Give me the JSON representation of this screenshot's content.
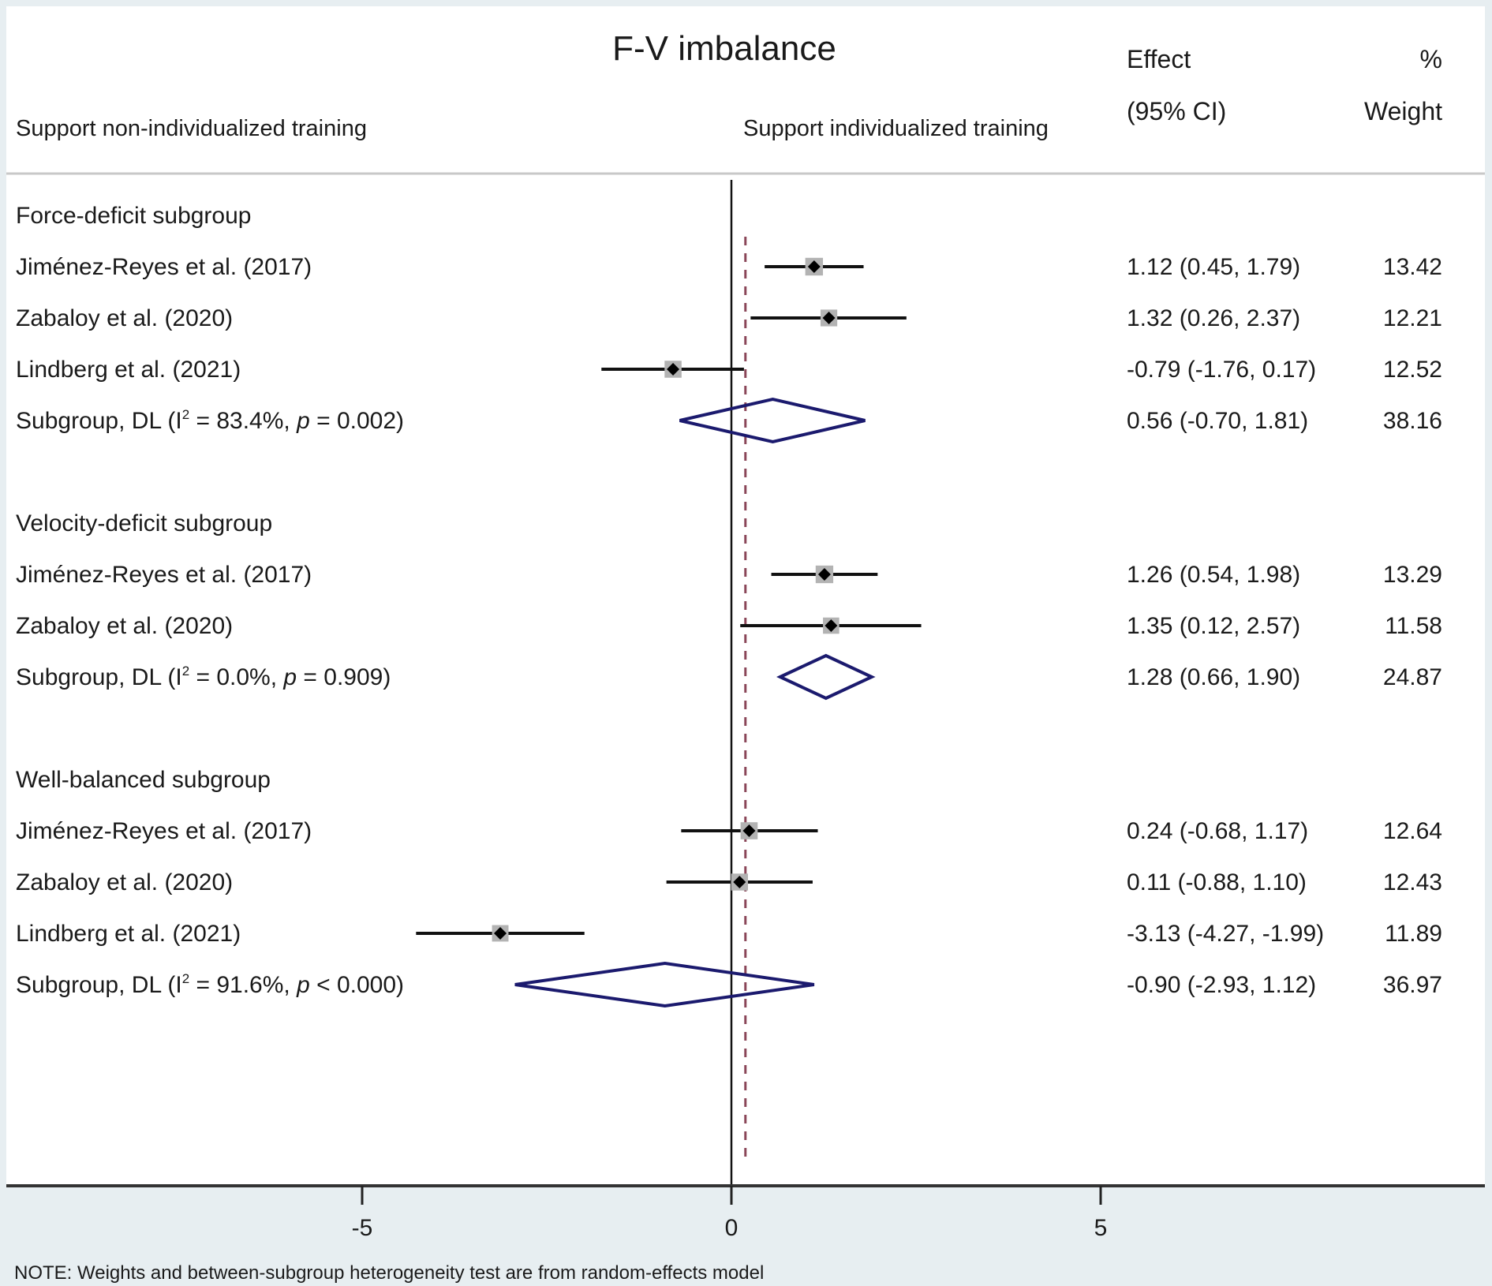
{
  "chart_data": {
    "type": "forest",
    "title": "F-V imbalance",
    "left_label": "Support non-individualized training",
    "right_label": "Support individualized training",
    "col_headers": {
      "effect_line1": "Effect",
      "effect_line2": "(95% CI)",
      "weight_line1": "%",
      "weight_line2": "Weight"
    },
    "xlim": [
      -9.9,
      8.3
    ],
    "xticks": [
      -5,
      0,
      5
    ],
    "xtick_labels": [
      "-5",
      "0",
      "5"
    ],
    "null_line": 0,
    "overall_effect_line": 0.19,
    "colors": {
      "diamond": "#1b1a6e",
      "ci_line": "#111111",
      "weight_box": "#b3b3b3",
      "overall_line": "#8a4658",
      "background": "#e7eef1"
    },
    "rows": [
      {
        "kind": "header",
        "label": "Force-deficit subgroup"
      },
      {
        "kind": "study",
        "label": "Jiménez-Reyes et al. (2017)",
        "es": 1.12,
        "lo": 0.45,
        "hi": 1.79,
        "ci_text": "1.12 (0.45, 1.79)",
        "weight": "13.42"
      },
      {
        "kind": "study",
        "label": "Zabaloy et al. (2020)",
        "es": 1.32,
        "lo": 0.26,
        "hi": 2.37,
        "ci_text": "1.32 (0.26, 2.37)",
        "weight": "12.21"
      },
      {
        "kind": "study",
        "label": "Lindberg et al. (2021)",
        "es": -0.79,
        "lo": -1.76,
        "hi": 0.17,
        "ci_text": "-0.79 (-1.76, 0.17)",
        "weight": "12.52"
      },
      {
        "kind": "subgroup",
        "label_pre": "Subgroup, DL (I",
        "label_sup": "2",
        "label_mid": " = 83.4%, ",
        "label_p": "p",
        "label_post": " = 0.002)",
        "es": 0.56,
        "lo": -0.7,
        "hi": 1.81,
        "ci_text": "0.56 (-0.70, 1.81)",
        "weight": "38.16"
      },
      {
        "kind": "blank"
      },
      {
        "kind": "header",
        "label": "Velocity-deficit subgroup"
      },
      {
        "kind": "study",
        "label": "Jiménez-Reyes et al. (2017)",
        "es": 1.26,
        "lo": 0.54,
        "hi": 1.98,
        "ci_text": "1.26 (0.54, 1.98)",
        "weight": "13.29"
      },
      {
        "kind": "study",
        "label": "Zabaloy et al. (2020)",
        "es": 1.35,
        "lo": 0.12,
        "hi": 2.57,
        "ci_text": "1.35 (0.12, 2.57)",
        "weight": "11.58"
      },
      {
        "kind": "subgroup",
        "label_pre": "Subgroup, DL (I",
        "label_sup": "2",
        "label_mid": " = 0.0%, ",
        "label_p": "p",
        "label_post": " = 0.909)",
        "es": 1.28,
        "lo": 0.66,
        "hi": 1.9,
        "ci_text": "1.28 (0.66, 1.90)",
        "weight": "24.87"
      },
      {
        "kind": "blank"
      },
      {
        "kind": "header",
        "label": "Well-balanced subgroup"
      },
      {
        "kind": "study",
        "label": "Jiménez-Reyes et al. (2017)",
        "es": 0.24,
        "lo": -0.68,
        "hi": 1.17,
        "ci_text": "0.24 (-0.68, 1.17)",
        "weight": "12.64"
      },
      {
        "kind": "study",
        "label": "Zabaloy et al. (2020)",
        "es": 0.11,
        "lo": -0.88,
        "hi": 1.1,
        "ci_text": "0.11 (-0.88, 1.10)",
        "weight": "12.43"
      },
      {
        "kind": "study",
        "label": "Lindberg et al. (2021)",
        "es": -3.13,
        "lo": -4.27,
        "hi": -1.99,
        "ci_text": "-3.13 (-4.27, -1.99)",
        "weight": "11.89"
      },
      {
        "kind": "subgroup",
        "label_pre": "Subgroup, DL (I",
        "label_sup": "2",
        "label_mid": " = 91.6%, ",
        "label_p": "p",
        "label_post": " < 0.000)",
        "es": -0.9,
        "lo": -2.93,
        "hi": 1.12,
        "ci_text": "-0.90 (-2.93, 1.12)",
        "weight": "36.97"
      }
    ],
    "note": "NOTE: Weights and between-subgroup heterogeneity test are from random-effects model"
  }
}
